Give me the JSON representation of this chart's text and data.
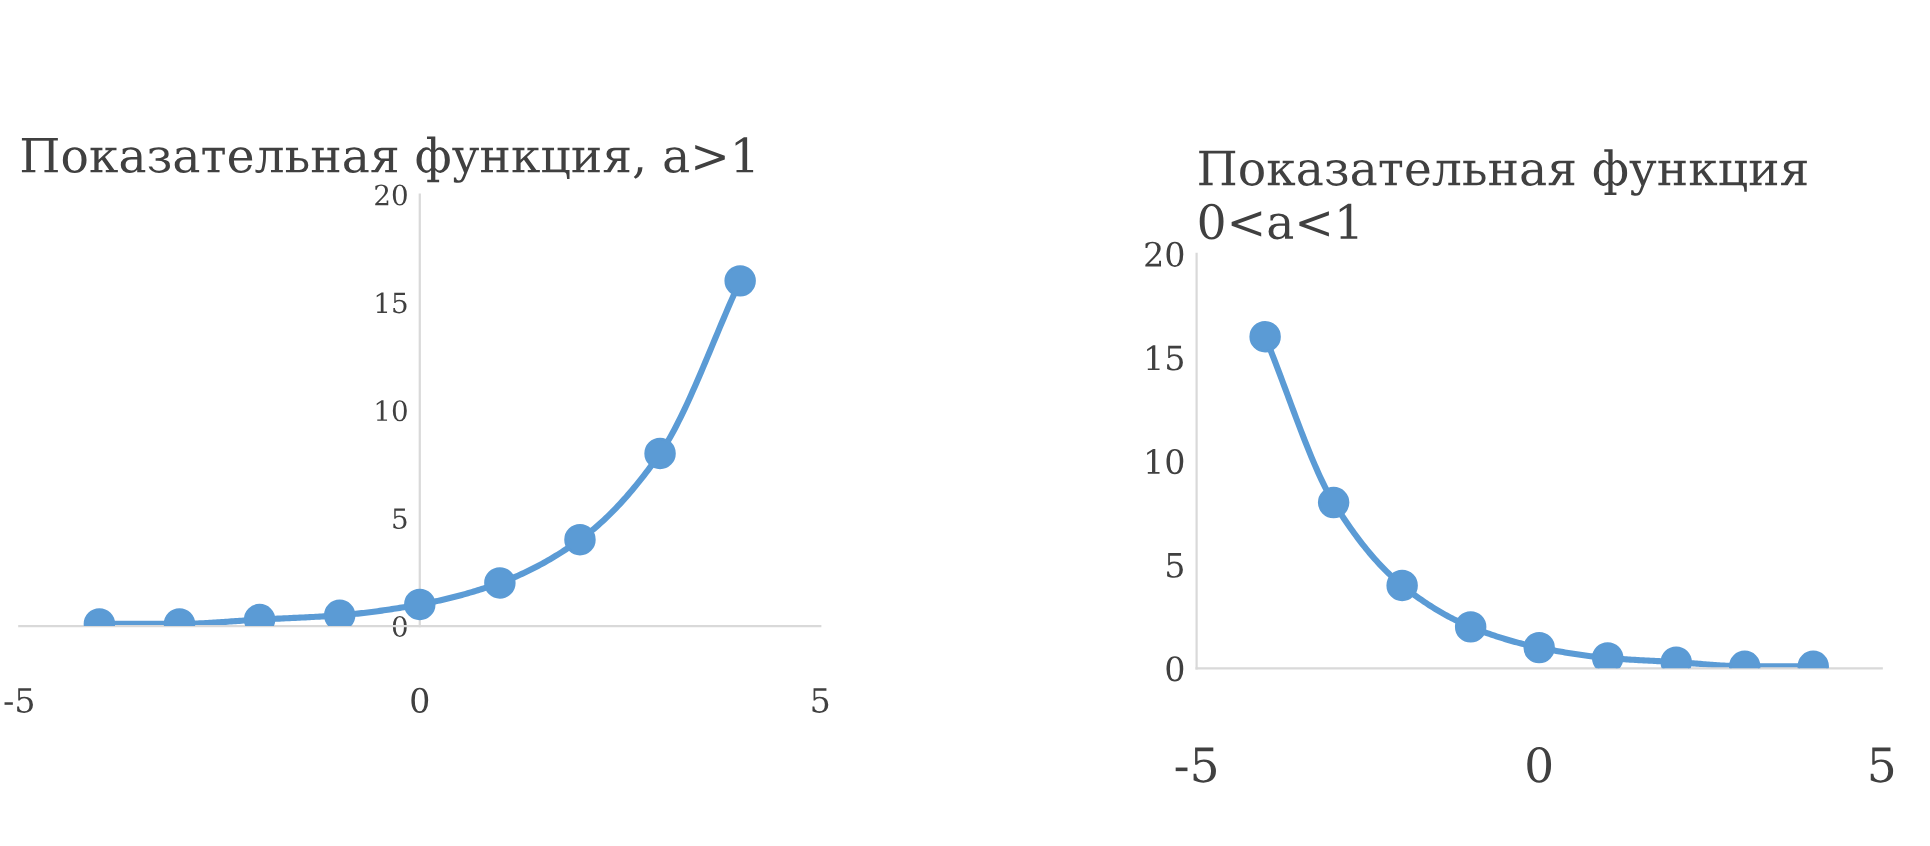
{
  "chart_data": [
    {
      "type": "line",
      "title": "Показательная функция, a>1",
      "x": [
        -4,
        -3,
        -2,
        -1,
        0,
        1,
        2,
        3,
        4
      ],
      "series": [
        {
          "color": "#5b9bd5",
          "values": [
            0.1,
            0.1,
            0.3,
            0.5,
            1,
            2,
            4,
            8,
            16
          ]
        }
      ],
      "xlim": [
        -5,
        5
      ],
      "xticks": [
        -5,
        0,
        5
      ],
      "ylim": [
        0,
        20
      ],
      "yticks": [
        0,
        5,
        10,
        15,
        20
      ],
      "grid": false,
      "marker": "circle",
      "line_style": "solid"
    },
    {
      "type": "line",
      "title": "Показательная функция 0<a<1",
      "x": [
        -4,
        -3,
        -2,
        -1,
        0,
        1,
        2,
        3,
        4
      ],
      "series": [
        {
          "color": "#5b9bd5",
          "values": [
            16,
            8,
            4,
            2,
            1,
            0.5,
            0.3,
            0.1,
            0.1
          ]
        }
      ],
      "xlim": [
        -5,
        5
      ],
      "xticks": [
        -5,
        0,
        5
      ],
      "ylim": [
        0,
        20
      ],
      "yticks": [
        0,
        5,
        10,
        15,
        20
      ],
      "grid": false,
      "marker": "circle",
      "line_style": "solid"
    }
  ]
}
